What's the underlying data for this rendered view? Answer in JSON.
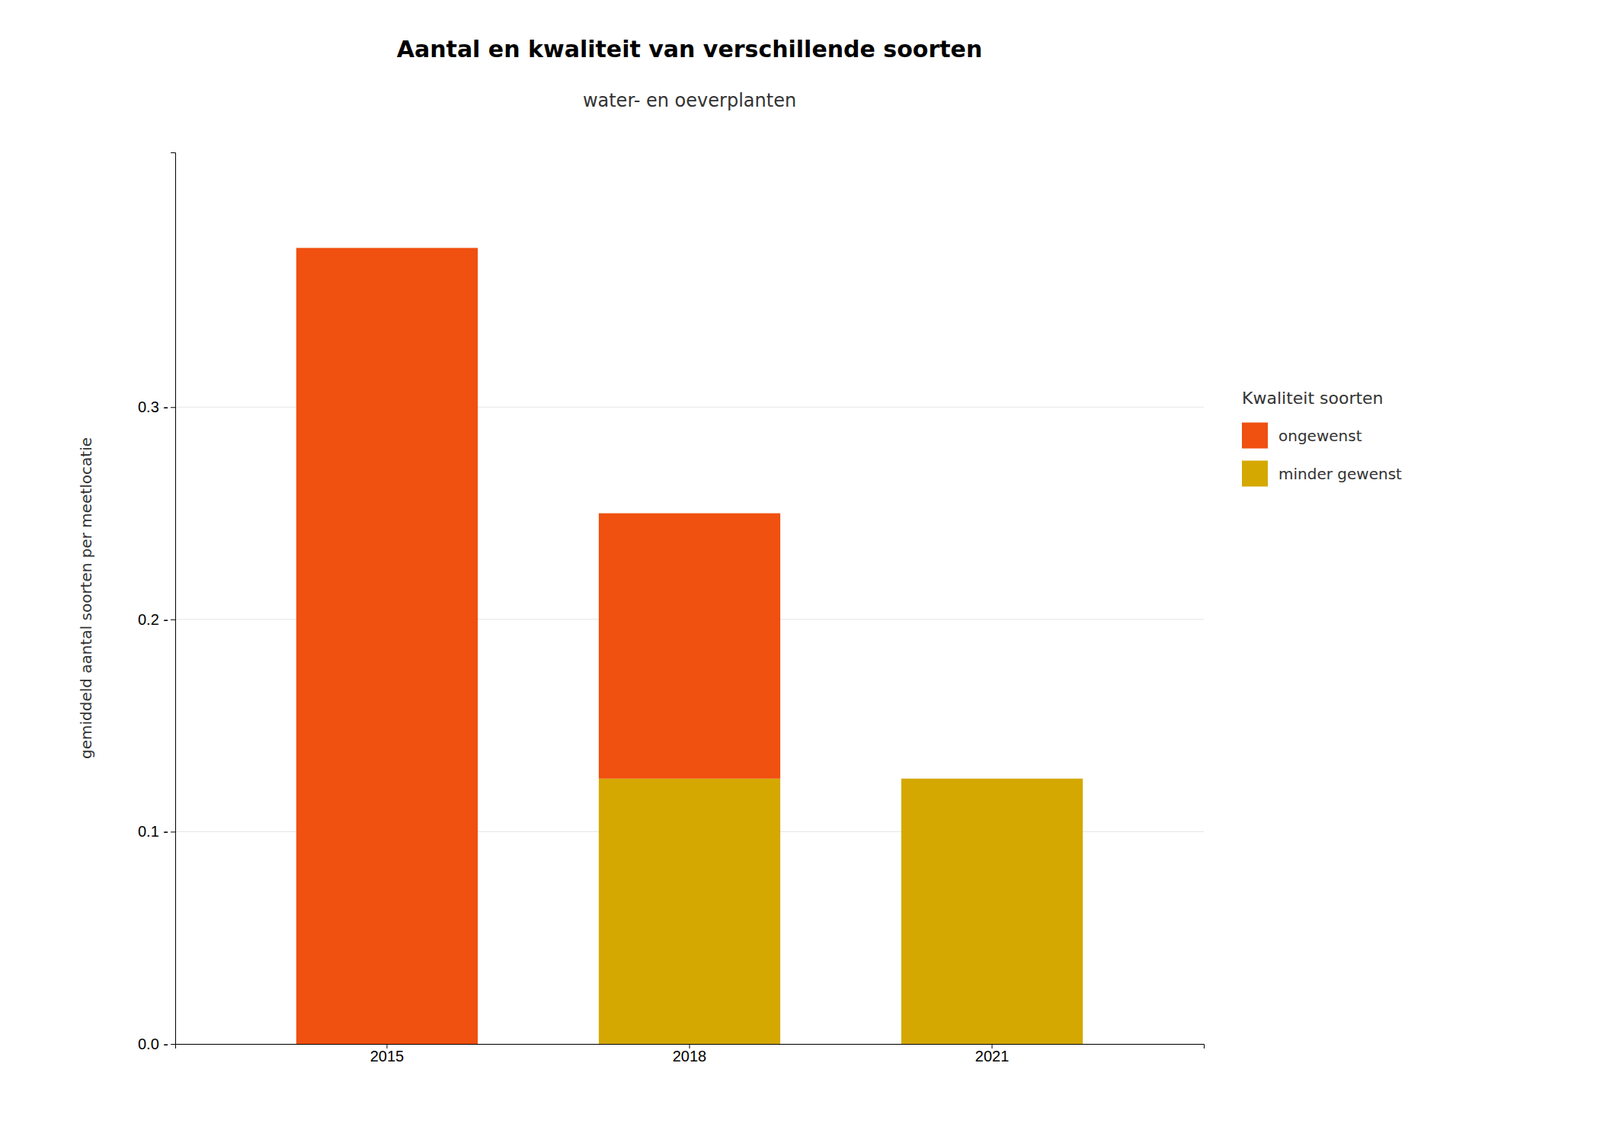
{
  "chart_data": {
    "type": "bar",
    "stacked": true,
    "title": "Aantal en kwaliteit van verschillende soorten",
    "subtitle": "water- en oeverplanten",
    "y_label": "gemiddeld aantal soorten per meetlocatie",
    "categories": [
      "2015",
      "2018",
      "2021"
    ],
    "series": [
      {
        "name": "minder gewenst",
        "color": "#D4A800",
        "values": [
          0.0,
          0.125,
          0.125
        ]
      },
      {
        "name": "ongewenst",
        "color": "#F05010",
        "values": [
          0.375,
          0.125,
          0.0
        ]
      }
    ],
    "legend_title": "Kwaliteit soorten",
    "legend": "right",
    "ylim": [
      0,
      0.42
    ],
    "yticks": [
      {
        "value": 0.0,
        "label": "0.0 -"
      },
      {
        "value": 0.1,
        "label": "0.1 -"
      },
      {
        "value": 0.2,
        "label": "0.2 -"
      },
      {
        "value": 0.3,
        "label": "0.3 -"
      }
    ],
    "grid": true
  }
}
